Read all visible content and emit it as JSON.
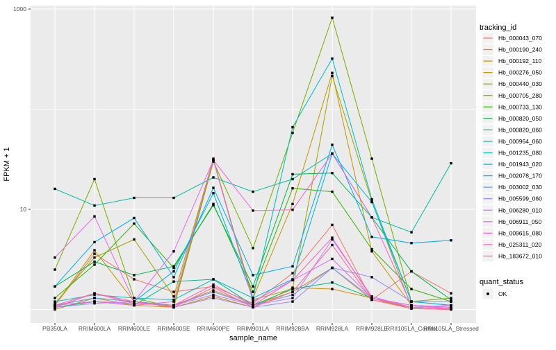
{
  "figure": {
    "background": "#FFFFFF",
    "panel_bg": "#EBEBEB",
    "grid_color": "#FFFFFF",
    "tick_color": "#333333",
    "tick_label_color": "#4D4D4D",
    "axis_title_color": "#000000",
    "legend_key_bg": "#F2F2F2",
    "point_color": "#000000"
  },
  "chart_data": {
    "type": "line",
    "title": "",
    "xlabel": "sample_name",
    "ylabel": "FPKM + 1",
    "y_scale": "log10",
    "ylim": [
      0.73,
      1100
    ],
    "grid": true,
    "legend_position": "right",
    "y_ticks": [
      {
        "value": 10,
        "label": "10"
      },
      {
        "value": 1000,
        "label": "1000"
      }
    ],
    "y_gridlines": [
      1,
      10,
      100,
      1000
    ],
    "categories": [
      "PB350LA",
      "RRIM600LA",
      "RRIM600LE",
      "RRIM600SE",
      "RRIM600PE",
      "RRIM901LA",
      "RRIM928BA",
      "RRIM928LA",
      "RRIM928LE",
      "RRII105LA_Control",
      "RRII105LA_Stressed"
    ],
    "legend_tracking_title": "tracking_id",
    "legend_quant_title": "quant_status",
    "quant_items": [
      {
        "label": "OK"
      }
    ],
    "series": [
      {
        "name": "Hb_000043_070",
        "color": "#F8766D",
        "values": [
          1.1,
          3.6,
          2.0,
          1.5,
          1.7,
          1.15,
          2.3,
          7.0,
          1.25,
          2.4,
          1.45
        ]
      },
      {
        "name": "Hb_000190_240",
        "color": "#E88526",
        "values": [
          1.05,
          1.2,
          1.15,
          1.1,
          1.55,
          1.1,
          1.5,
          2.6,
          1.25,
          1.05,
          1.02
        ]
      },
      {
        "name": "Hb_000192_110",
        "color": "#D89000",
        "values": [
          1.0,
          1.3,
          1.1,
          1.05,
          1.35,
          1.05,
          1.65,
          1.6,
          1.3,
          1.02,
          1.0
        ]
      },
      {
        "name": "Hb_000276_050",
        "color": "#C49A00",
        "values": [
          1.1,
          3.9,
          1.2,
          1.1,
          31,
          1.3,
          11.3,
          230,
          3.8,
          1.1,
          1.05
        ]
      },
      {
        "name": "Hb_000440_030",
        "color": "#A3A500",
        "values": [
          1.15,
          3.3,
          5.0,
          1.35,
          32,
          1.25,
          1.6,
          215,
          12,
          1.05,
          1.02
        ]
      },
      {
        "name": "Hb_000705_280",
        "color": "#7CAE00",
        "values": [
          2.5,
          20,
          1.3,
          1.05,
          30,
          4.1,
          58,
          820,
          32,
          1.2,
          1.3
        ]
      },
      {
        "name": "Hb_000733_130",
        "color": "#39B600",
        "values": [
          1.3,
          2.8,
          7.2,
          2.6,
          11.3,
          1.5,
          16.2,
          15,
          4.0,
          1.6,
          1.2
        ]
      },
      {
        "name": "Hb_000820_050",
        "color": "#00BB4E",
        "values": [
          1.7,
          3.0,
          2.2,
          2.7,
          11,
          1.7,
          22.4,
          23,
          8.3,
          2.4,
          1.25
        ]
      },
      {
        "name": "Hb_000820_060",
        "color": "#00C08B",
        "values": [
          1.05,
          1.2,
          1.1,
          1.9,
          2.0,
          1.1,
          1.6,
          1.86,
          1.3,
          1.05,
          1.02
        ]
      },
      {
        "name": "Hb_000964_060",
        "color": "#00C1A3",
        "values": [
          16,
          10.9,
          13,
          13,
          20.8,
          15,
          20,
          36,
          8.3,
          5.9,
          28.8
        ]
      },
      {
        "name": "Hb_001235_080",
        "color": "#00BFC4",
        "values": [
          1.2,
          1.4,
          1.3,
          1.25,
          2.0,
          1.3,
          66,
          320,
          12.6,
          1.2,
          1.1
        ]
      },
      {
        "name": "Hb_001943_020",
        "color": "#00B5EB",
        "values": [
          1.1,
          1.3,
          1.2,
          2.4,
          14.5,
          1.3,
          2.0,
          36,
          11.8,
          1.2,
          1.1
        ]
      },
      {
        "name": "Hb_002078_170",
        "color": "#00B0F6",
        "values": [
          1.7,
          4.7,
          8.2,
          2.1,
          16.4,
          2.2,
          2.7,
          44,
          5.3,
          4.6,
          4.9
        ]
      },
      {
        "name": "Hb_003002_030",
        "color": "#619CFF",
        "values": [
          1.1,
          1.3,
          1.2,
          1.1,
          1.5,
          1.1,
          1.4,
          2.6,
          1.3,
          1.1,
          1.05
        ]
      },
      {
        "name": "Hb_005599_060",
        "color": "#9590FF",
        "values": [
          1.05,
          1.15,
          1.2,
          1.05,
          1.3,
          1.05,
          1.2,
          2.6,
          2.1,
          1.2,
          1.2
        ]
      },
      {
        "name": "Hb_006280_010",
        "color": "#C77CFF",
        "values": [
          1.1,
          1.2,
          1.15,
          1.1,
          1.4,
          1.1,
          1.3,
          5.0,
          1.35,
          1.05,
          1.1
        ]
      },
      {
        "name": "Hb_006911_050",
        "color": "#E76BF3",
        "values": [
          3.3,
          8.5,
          1.2,
          3.8,
          31,
          1.2,
          1.96,
          3.2,
          1.3,
          1.1,
          1.05
        ]
      },
      {
        "name": "Hb_009615_080",
        "color": "#FA62DB",
        "values": [
          1.1,
          1.2,
          1.1,
          1.2,
          31,
          9.7,
          9.9,
          36,
          8.3,
          1.1,
          1.02
        ]
      },
      {
        "name": "Hb_025311_020",
        "color": "#FF62BC",
        "values": [
          1.1,
          1.45,
          1.15,
          1.1,
          1.77,
          1.1,
          1.96,
          5.2,
          1.3,
          1.05,
          1.02
        ]
      },
      {
        "name": "Hb_183672_010",
        "color": "#FF6A98",
        "values": [
          1.05,
          1.45,
          1.2,
          1.05,
          1.66,
          1.05,
          1.5,
          4.4,
          1.25,
          1.02,
          1.0
        ]
      }
    ]
  }
}
